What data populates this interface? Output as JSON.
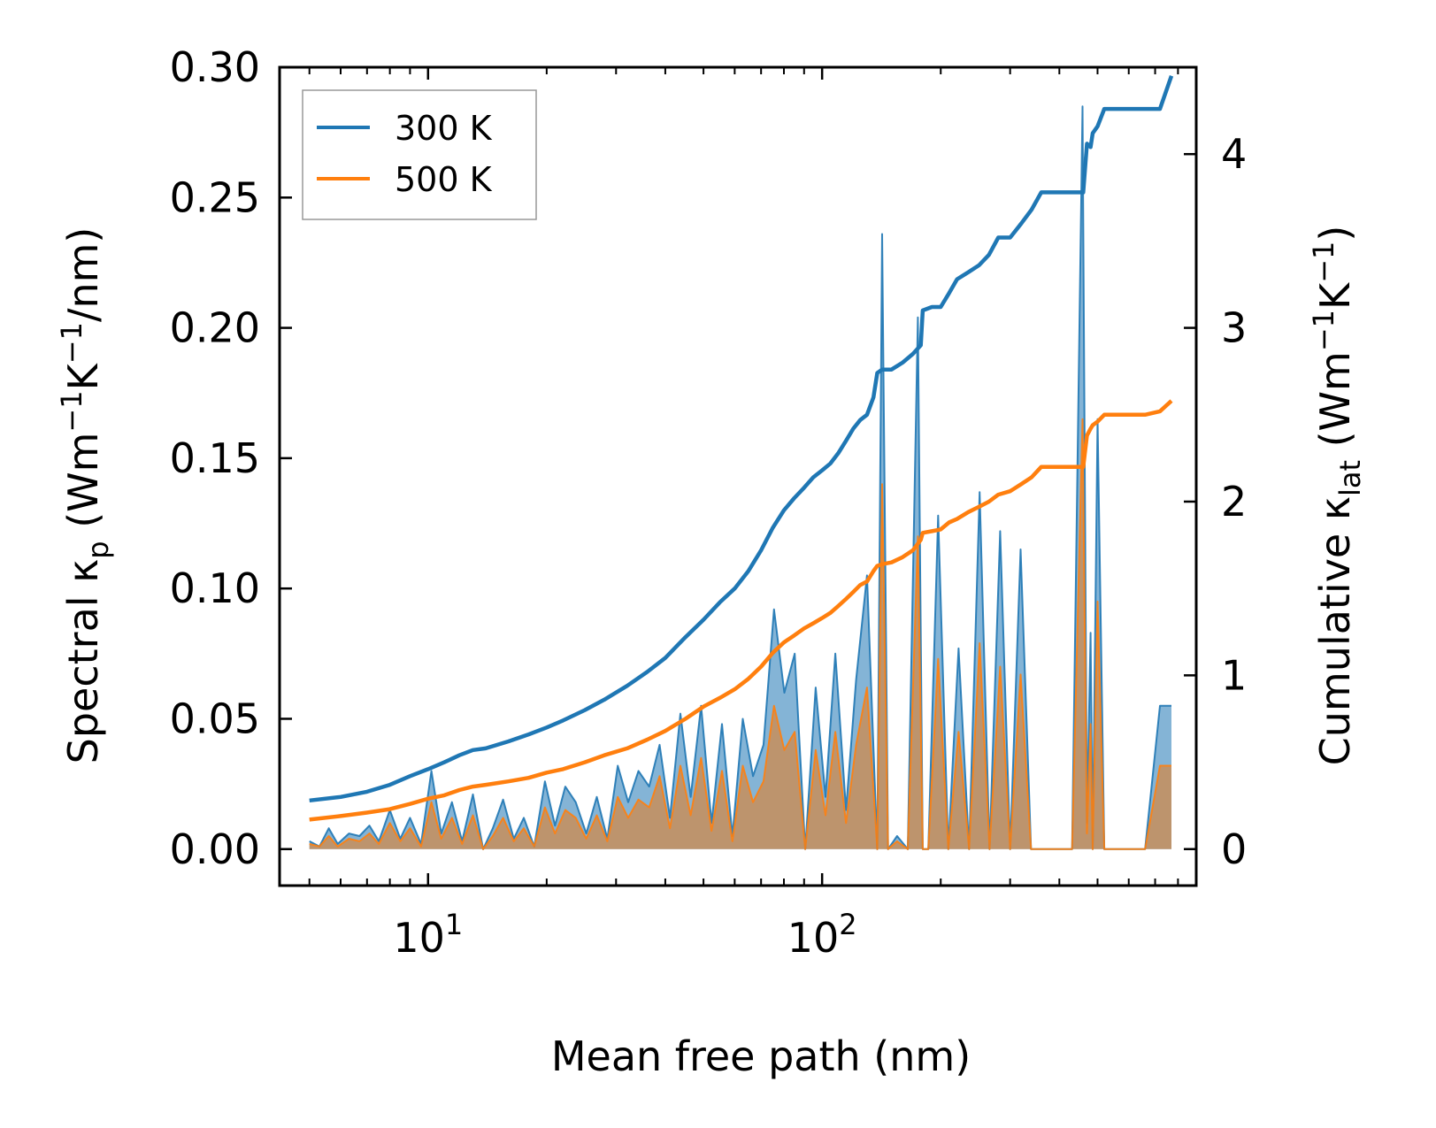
{
  "chart_data": {
    "type": "line",
    "title": "",
    "xlabel": "Mean free path (nm)",
    "xscale": "log",
    "xlim": [
      4.2,
      890
    ],
    "xticks": [
      {
        "value": 10,
        "label_base": "10",
        "label_exp": "1"
      },
      {
        "value": 100,
        "label_base": "10",
        "label_exp": "2"
      }
    ],
    "left_axis": {
      "label_main": "Spectral κ",
      "label_sub": "p",
      "label_units": " (Wm",
      "label_units_sup1": "−1",
      "label_units_mid": "K",
      "label_units_sup2": "−1",
      "label_units_end": "/nm)",
      "ylim": [
        -0.014,
        0.3
      ],
      "ticks": [
        "0.00",
        "0.05",
        "0.10",
        "0.15",
        "0.20",
        "0.25",
        "0.30"
      ],
      "tick_values": [
        0,
        0.05,
        0.1,
        0.15,
        0.2,
        0.25,
        0.3
      ]
    },
    "right_axis": {
      "label_main": "Cumulative κ",
      "label_sub": "lat",
      "label_units": " (Wm",
      "label_units_sup1": "−1",
      "label_units_mid": "K",
      "label_units_sup2": "−1",
      "label_units_end": ")",
      "ylim": [
        -0.21,
        4.5
      ],
      "ticks": [
        "0",
        "1",
        "2",
        "3",
        "4"
      ],
      "tick_values": [
        0,
        1,
        2,
        3,
        4
      ]
    },
    "legend": {
      "placement": "top-left",
      "entries": [
        {
          "label": "300 K",
          "color": "#1f77b4"
        },
        {
          "label": "500 K",
          "color": "#ff7f0e"
        }
      ]
    },
    "spectral_series": [
      {
        "name": "300 K",
        "color": "#1f77b4",
        "x": [
          5.0,
          5.3,
          5.6,
          5.9,
          6.3,
          6.7,
          7.1,
          7.5,
          8.0,
          8.5,
          9.0,
          9.6,
          10.2,
          10.8,
          11.5,
          12.2,
          13.0,
          13.8,
          14.6,
          15.5,
          16.5,
          17.5,
          18.6,
          19.8,
          21,
          22.3,
          23.7,
          25.2,
          26.8,
          28.5,
          30.3,
          32.2,
          34.2,
          36.4,
          38.7,
          41.1,
          43.7,
          46.4,
          49.3,
          52.4,
          55.7,
          59.2,
          62.9,
          66.8,
          71,
          75.5,
          80.2,
          85.2,
          90.6,
          96.3,
          102,
          108,
          115,
          122,
          130,
          138,
          142,
          147,
          155,
          165,
          175,
          180,
          186,
          197,
          209,
          222,
          236,
          251,
          266,
          283,
          300,
          319,
          339,
          360,
          382,
          406,
          431,
          458,
          470,
          480,
          486,
          500,
          520,
          536,
          560,
          600,
          660,
          720,
          760,
          770
        ],
        "y": [
          0.003,
          0.001,
          0.008,
          0.002,
          0.006,
          0.005,
          0.009,
          0.003,
          0.015,
          0.004,
          0.012,
          0.002,
          0.03,
          0.006,
          0.018,
          0.003,
          0.021,
          0,
          0.008,
          0.019,
          0.004,
          0.012,
          0.001,
          0.026,
          0.009,
          0.024,
          0.018,
          0.006,
          0.02,
          0.004,
          0.032,
          0.018,
          0.03,
          0.024,
          0.04,
          0.012,
          0.052,
          0.02,
          0.055,
          0.01,
          0.048,
          0.005,
          0.05,
          0.028,
          0.04,
          0.092,
          0.06,
          0.075,
          0,
          0.062,
          0.02,
          0.075,
          0.015,
          0.065,
          0.105,
          0,
          0.236,
          0,
          0.005,
          0,
          0.204,
          0,
          0,
          0.128,
          0,
          0.077,
          0,
          0.137,
          0,
          0.122,
          0,
          0.115,
          0,
          0,
          0,
          0,
          0,
          0.285,
          0.01,
          0.083,
          0,
          0.165,
          0,
          0,
          0,
          0,
          0,
          0.055,
          0.055,
          0.055
        ]
      },
      {
        "name": "500 K",
        "color": "#ff7f0e",
        "x": [
          5.0,
          5.3,
          5.6,
          5.9,
          6.3,
          6.7,
          7.1,
          7.5,
          8.0,
          8.5,
          9.0,
          9.6,
          10.2,
          10.8,
          11.5,
          12.2,
          13.0,
          13.8,
          14.6,
          15.5,
          16.5,
          17.5,
          18.6,
          19.8,
          21,
          22.3,
          23.7,
          25.2,
          26.8,
          28.5,
          30.3,
          32.2,
          34.2,
          36.4,
          38.7,
          41.1,
          43.7,
          46.4,
          49.3,
          52.4,
          55.7,
          59.2,
          62.9,
          66.8,
          71,
          75.5,
          80.2,
          85.2,
          90.6,
          96.3,
          102,
          108,
          115,
          122,
          130,
          138,
          142,
          147,
          155,
          165,
          175,
          180,
          186,
          197,
          209,
          222,
          236,
          251,
          266,
          283,
          300,
          319,
          339,
          360,
          382,
          406,
          431,
          458,
          470,
          480,
          486,
          500,
          520,
          536,
          560,
          600,
          660,
          720,
          760,
          770
        ],
        "y": [
          0.002,
          0.001,
          0.005,
          0.001,
          0.004,
          0.003,
          0.006,
          0.002,
          0.01,
          0.003,
          0.008,
          0.001,
          0.018,
          0.004,
          0.012,
          0.002,
          0.013,
          0,
          0.005,
          0.012,
          0.003,
          0.008,
          0.001,
          0.016,
          0.006,
          0.015,
          0.012,
          0.004,
          0.013,
          0.003,
          0.02,
          0.012,
          0.019,
          0.016,
          0.028,
          0.008,
          0.032,
          0.013,
          0.035,
          0.007,
          0.03,
          0.003,
          0.032,
          0.018,
          0.026,
          0.055,
          0.038,
          0.045,
          0,
          0.038,
          0.013,
          0.045,
          0.01,
          0.04,
          0.062,
          0,
          0.14,
          0,
          0.003,
          0,
          0.12,
          0,
          0,
          0.073,
          0,
          0.045,
          0,
          0.079,
          0,
          0.07,
          0,
          0.067,
          0,
          0,
          0,
          0,
          0,
          0.165,
          0.006,
          0.048,
          0,
          0.095,
          0,
          0,
          0,
          0,
          0,
          0.032,
          0.032,
          0.032
        ]
      }
    ],
    "cumulative_series": [
      {
        "name": "300 K",
        "color": "#1f77b4",
        "x": [
          5,
          6,
          7,
          8,
          9,
          10,
          11,
          12,
          13,
          14,
          16,
          18,
          20,
          22,
          25,
          28,
          32,
          36,
          40,
          45,
          50,
          55,
          60,
          65,
          70,
          75,
          80,
          85,
          90,
          95,
          100,
          105,
          110,
          115,
          120,
          125,
          130,
          135,
          138,
          142,
          150,
          160,
          170,
          178,
          180,
          190,
          200,
          210,
          220,
          235,
          250,
          265,
          280,
          300,
          320,
          340,
          360,
          380,
          400,
          430,
          460,
          470,
          480,
          486,
          500,
          520,
          540,
          560,
          600,
          660,
          720,
          770
        ],
        "y": [
          0.28,
          0.3,
          0.33,
          0.37,
          0.42,
          0.46,
          0.5,
          0.54,
          0.57,
          0.58,
          0.62,
          0.66,
          0.7,
          0.74,
          0.8,
          0.86,
          0.94,
          1.02,
          1.1,
          1.22,
          1.32,
          1.42,
          1.5,
          1.6,
          1.72,
          1.85,
          1.95,
          2.02,
          2.08,
          2.14,
          2.18,
          2.22,
          2.28,
          2.35,
          2.42,
          2.47,
          2.5,
          2.6,
          2.74,
          2.76,
          2.76,
          2.8,
          2.85,
          2.9,
          3.1,
          3.12,
          3.12,
          3.2,
          3.28,
          3.32,
          3.36,
          3.42,
          3.52,
          3.52,
          3.6,
          3.68,
          3.78,
          3.78,
          3.78,
          3.78,
          3.78,
          4.06,
          4.04,
          4.12,
          4.16,
          4.26,
          4.26,
          4.26,
          4.26,
          4.26,
          4.26,
          4.45
        ]
      },
      {
        "name": "500 K",
        "color": "#ff7f0e",
        "x": [
          5,
          6,
          7,
          8,
          9,
          10,
          11,
          12,
          13,
          14,
          16,
          18,
          20,
          22,
          25,
          28,
          32,
          36,
          40,
          45,
          50,
          55,
          60,
          65,
          70,
          75,
          80,
          85,
          90,
          95,
          100,
          105,
          110,
          115,
          120,
          125,
          130,
          135,
          138,
          142,
          150,
          160,
          170,
          178,
          180,
          190,
          200,
          210,
          220,
          235,
          250,
          265,
          280,
          300,
          320,
          340,
          360,
          380,
          400,
          430,
          460,
          470,
          480,
          486,
          500,
          520,
          540,
          560,
          600,
          660,
          720,
          770
        ],
        "y": [
          0.17,
          0.19,
          0.21,
          0.23,
          0.26,
          0.29,
          0.31,
          0.34,
          0.36,
          0.37,
          0.39,
          0.41,
          0.44,
          0.46,
          0.5,
          0.54,
          0.58,
          0.63,
          0.68,
          0.75,
          0.82,
          0.87,
          0.92,
          0.98,
          1.05,
          1.13,
          1.19,
          1.23,
          1.27,
          1.3,
          1.33,
          1.36,
          1.4,
          1.44,
          1.48,
          1.52,
          1.54,
          1.6,
          1.63,
          1.64,
          1.65,
          1.68,
          1.72,
          1.78,
          1.82,
          1.83,
          1.84,
          1.88,
          1.9,
          1.94,
          1.97,
          2.0,
          2.04,
          2.06,
          2.1,
          2.14,
          2.2,
          2.2,
          2.2,
          2.2,
          2.2,
          2.38,
          2.42,
          2.44,
          2.46,
          2.5,
          2.5,
          2.5,
          2.5,
          2.5,
          2.52,
          2.58
        ]
      }
    ]
  }
}
